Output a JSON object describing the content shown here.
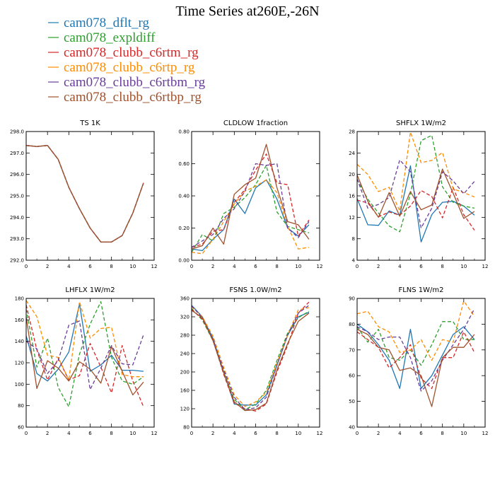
{
  "title": "Time Series at260E,-26N",
  "legend": [
    {
      "name": "cam078_dflt_rg",
      "color": "#1f77b4"
    },
    {
      "name": "cam078_expldiff",
      "color": "#2ca02c"
    },
    {
      "name": "cam078_clubb_c6rtm_rg",
      "color": "#d62728"
    },
    {
      "name": "cam078_clubb_c6rtp_rg",
      "color": "#ff8c00"
    },
    {
      "name": "cam078_clubb_c6rtbm_rg",
      "color": "#6a3d9a"
    },
    {
      "name": "cam078_clubb_c6rtbp_rg",
      "color": "#a0522d"
    }
  ],
  "chart_data": [
    {
      "type": "line",
      "title": "TS 1K",
      "x": [
        0,
        1,
        2,
        3,
        4,
        5,
        6,
        7,
        8,
        9,
        10,
        11
      ],
      "xlim": [
        0,
        12
      ],
      "xticks": [
        0,
        2,
        4,
        6,
        8,
        10,
        12
      ],
      "ylim": [
        292.0,
        298.0
      ],
      "yticks": [
        "292.0",
        "293.0",
        "294.0",
        "295.0",
        "296.0",
        "297.0",
        "298.0"
      ],
      "series": [
        {
          "name": "cam078_dflt_rg",
          "dash": "solid",
          "values": [
            297.35,
            297.3,
            297.35,
            296.7,
            295.4,
            294.4,
            293.5,
            292.85,
            292.85,
            293.15,
            294.2,
            295.6
          ]
        },
        {
          "name": "cam078_expldiff",
          "dash": "dashed",
          "values": [
            297.35,
            297.3,
            297.35,
            296.7,
            295.4,
            294.4,
            293.5,
            292.85,
            292.85,
            293.15,
            294.2,
            295.6
          ]
        },
        {
          "name": "cam078_clubb_c6rtm_rg",
          "dash": "dashed",
          "values": [
            297.35,
            297.3,
            297.35,
            296.7,
            295.4,
            294.4,
            293.5,
            292.85,
            292.85,
            293.15,
            294.2,
            295.6
          ]
        },
        {
          "name": "cam078_clubb_c6rtp_rg",
          "dash": "dashed",
          "values": [
            297.35,
            297.3,
            297.35,
            296.7,
            295.4,
            294.4,
            293.5,
            292.85,
            292.85,
            293.15,
            294.2,
            295.6
          ]
        },
        {
          "name": "cam078_clubb_c6rtbm_rg",
          "dash": "dashed",
          "values": [
            297.35,
            297.3,
            297.35,
            296.7,
            295.4,
            294.4,
            293.5,
            292.85,
            292.85,
            293.15,
            294.2,
            295.6
          ]
        },
        {
          "name": "cam078_clubb_c6rtbp_rg",
          "dash": "solid",
          "values": [
            297.35,
            297.3,
            297.35,
            296.7,
            295.4,
            294.4,
            293.5,
            292.85,
            292.85,
            293.15,
            294.2,
            295.6
          ]
        }
      ]
    },
    {
      "type": "line",
      "title": "CLDLOW 1fraction",
      "x": [
        0,
        1,
        2,
        3,
        4,
        5,
        6,
        7,
        8,
        9,
        10,
        11
      ],
      "xlim": [
        0,
        12
      ],
      "xticks": [
        0,
        2,
        4,
        6,
        8,
        10,
        12
      ],
      "ylim": [
        0.0,
        0.8
      ],
      "yticks": [
        "0.00",
        "0.20",
        "0.40",
        "0.60",
        "0.80"
      ],
      "series": [
        {
          "name": "cam078_dflt_rg",
          "dash": "solid",
          "values": [
            0.07,
            0.06,
            0.13,
            0.19,
            0.38,
            0.29,
            0.45,
            0.5,
            0.38,
            0.2,
            0.15,
            0.22
          ]
        },
        {
          "name": "cam078_expldiff",
          "dash": "dashed",
          "values": [
            0.05,
            0.16,
            0.12,
            0.29,
            0.33,
            0.39,
            0.47,
            0.59,
            0.3,
            0.21,
            0.19,
            0.17
          ]
        },
        {
          "name": "cam078_clubb_c6rtm_rg",
          "dash": "dashed",
          "values": [
            0.08,
            0.1,
            0.18,
            0.19,
            0.36,
            0.44,
            0.56,
            0.66,
            0.48,
            0.47,
            0.15,
            0.25
          ]
        },
        {
          "name": "cam078_clubb_c6rtp_rg",
          "dash": "dashed",
          "values": [
            0.05,
            0.04,
            0.13,
            0.24,
            0.35,
            0.43,
            0.46,
            0.5,
            0.42,
            0.21,
            0.07,
            0.08
          ]
        },
        {
          "name": "cam078_clubb_c6rtbm_rg",
          "dash": "dashed",
          "values": [
            0.08,
            0.12,
            0.16,
            0.26,
            0.32,
            0.43,
            0.6,
            0.59,
            0.6,
            0.2,
            0.14,
            0.24
          ]
        },
        {
          "name": "cam078_clubb_c6rtbp_rg",
          "dash": "solid",
          "values": [
            0.07,
            0.09,
            0.2,
            0.1,
            0.41,
            0.47,
            0.51,
            0.72,
            0.45,
            0.24,
            0.22,
            0.13
          ]
        }
      ]
    },
    {
      "type": "line",
      "title": "SHFLX 1W/m2",
      "x": [
        0,
        1,
        2,
        3,
        4,
        5,
        6,
        7,
        8,
        9,
        10,
        11
      ],
      "xlim": [
        0,
        12
      ],
      "xticks": [
        0,
        2,
        4,
        6,
        8,
        10,
        12
      ],
      "ylim": [
        4,
        28
      ],
      "yticks": [
        "4",
        "8",
        "12",
        "16",
        "20",
        "24",
        "28"
      ],
      "series": [
        {
          "name": "cam078_dflt_rg",
          "dash": "solid",
          "values": [
            15.5,
            10.6,
            10.5,
            13.2,
            12.4,
            21.6,
            7.4,
            12.5,
            14.8,
            15.0,
            14.1,
            12.4
          ]
        },
        {
          "name": "cam078_expldiff",
          "dash": "dashed",
          "values": [
            19.1,
            15.4,
            12.8,
            10.4,
            9.3,
            16.4,
            26.3,
            27.3,
            17.7,
            14.8,
            14.1,
            13.7
          ]
        },
        {
          "name": "cam078_clubb_c6rtm_rg",
          "dash": "dashed",
          "values": [
            15.2,
            14.7,
            12.1,
            13.0,
            12.4,
            14.1,
            17.0,
            15.9,
            11.9,
            17.6,
            12.5,
            9.6
          ]
        },
        {
          "name": "cam078_clubb_c6rtp_rg",
          "dash": "dashed",
          "values": [
            21.9,
            20.0,
            16.8,
            17.6,
            13.2,
            27.9,
            22.2,
            22.6,
            24.1,
            17.3,
            16.6,
            15.8
          ]
        },
        {
          "name": "cam078_clubb_c6rtbm_rg",
          "dash": "dashed",
          "values": [
            19.2,
            13.7,
            14.4,
            15.7,
            22.7,
            20.5,
            10.0,
            13.7,
            20.5,
            18.8,
            16.4,
            18.7
          ]
        },
        {
          "name": "cam078_clubb_c6rtbp_rg",
          "dash": "solid",
          "values": [
            19.9,
            15.0,
            12.0,
            16.6,
            12.2,
            16.8,
            13.4,
            14.3,
            21.0,
            16.5,
            11.8,
            13.1
          ]
        }
      ]
    },
    {
      "type": "line",
      "title": "LHFLX 1W/m2",
      "x": [
        0,
        1,
        2,
        3,
        4,
        5,
        6,
        7,
        8,
        9,
        10,
        11
      ],
      "xlim": [
        0,
        12
      ],
      "xticks": [
        0,
        2,
        4,
        6,
        8,
        10,
        12
      ],
      "ylim": [
        60,
        180
      ],
      "yticks": [
        "60",
        "80",
        "100",
        "120",
        "140",
        "160",
        "180"
      ],
      "series": [
        {
          "name": "cam078_dflt_rg",
          "dash": "solid",
          "values": [
            145,
            110,
            103,
            114,
            130,
            175,
            112,
            118,
            127,
            113,
            113,
            112
          ]
        },
        {
          "name": "cam078_expldiff",
          "dash": "dashed",
          "values": [
            170,
            116,
            143,
            97,
            79,
            128,
            156,
            177,
            125,
            103,
            100,
            107
          ]
        },
        {
          "name": "cam078_clubb_c6rtm_rg",
          "dash": "dashed",
          "values": [
            174,
            132,
            104,
            124,
            104,
            108,
            138,
            116,
            92,
            136,
            103,
            79
          ]
        },
        {
          "name": "cam078_clubb_c6rtp_rg",
          "dash": "dashed",
          "values": [
            178,
            163,
            127,
            125,
            104,
            177,
            143,
            152,
            153,
            109,
            107,
            107
          ]
        },
        {
          "name": "cam078_clubb_c6rtbm_rg",
          "dash": "dashed",
          "values": [
            140,
            133,
            110,
            122,
            155,
            159,
            95,
            115,
            136,
            119,
            118,
            146
          ]
        },
        {
          "name": "cam078_clubb_c6rtbp_rg",
          "dash": "solid",
          "values": [
            163,
            96,
            122,
            115,
            103,
            121,
            114,
            101,
            135,
            112,
            90,
            102
          ]
        }
      ]
    },
    {
      "type": "line",
      "title": "FSNS 1.0W/m2",
      "x": [
        0,
        1,
        2,
        3,
        4,
        5,
        6,
        7,
        8,
        9,
        10,
        11
      ],
      "xlim": [
        0,
        12
      ],
      "xticks": [
        0,
        2,
        4,
        6,
        8,
        10,
        12
      ],
      "ylim": [
        80,
        360
      ],
      "yticks": [
        "80",
        "120",
        "160",
        "200",
        "240",
        "280",
        "320",
        "360"
      ],
      "series": [
        {
          "name": "cam078_dflt_rg",
          "dash": "solid",
          "values": [
            345,
            320,
            273,
            200,
            130,
            128,
            128,
            150,
            215,
            280,
            320,
            330
          ]
        },
        {
          "name": "cam078_expldiff",
          "dash": "dashed",
          "values": [
            338,
            313,
            268,
            200,
            140,
            118,
            130,
            160,
            225,
            285,
            318,
            332
          ]
        },
        {
          "name": "cam078_clubb_c6rtm_rg",
          "dash": "dashed",
          "values": [
            336,
            315,
            270,
            195,
            132,
            120,
            115,
            130,
            200,
            258,
            328,
            352
          ]
        },
        {
          "name": "cam078_clubb_c6rtp_rg",
          "dash": "dashed",
          "values": [
            342,
            320,
            278,
            210,
            150,
            125,
            135,
            155,
            220,
            280,
            335,
            340
          ]
        },
        {
          "name": "cam078_clubb_c6rtbm_rg",
          "dash": "dashed",
          "values": [
            344,
            318,
            270,
            205,
            145,
            118,
            122,
            145,
            215,
            280,
            328,
            345
          ]
        },
        {
          "name": "cam078_clubb_c6rtbp_rg",
          "dash": "solid",
          "values": [
            334,
            318,
            268,
            198,
            135,
            116,
            118,
            132,
            205,
            262,
            310,
            328
          ]
        }
      ]
    },
    {
      "type": "line",
      "title": "FLNS 1W/m2",
      "x": [
        0,
        1,
        2,
        3,
        4,
        5,
        6,
        7,
        8,
        9,
        10,
        11
      ],
      "xlim": [
        0,
        12
      ],
      "xticks": [
        0,
        2,
        4,
        6,
        8,
        10,
        12
      ],
      "ylim": [
        40,
        90
      ],
      "yticks": [
        "40",
        "50",
        "60",
        "70",
        "80",
        "90"
      ],
      "series": [
        {
          "name": "cam078_dflt_rg",
          "dash": "solid",
          "values": [
            80,
            77,
            72,
            66,
            55,
            78,
            55,
            60,
            68,
            76,
            79,
            74
          ]
        },
        {
          "name": "cam078_expldiff",
          "dash": "dashed",
          "values": [
            79,
            73,
            78,
            67,
            66,
            70,
            64,
            72,
            81,
            81,
            74,
            74
          ]
        },
        {
          "name": "cam078_clubb_c6rtm_rg",
          "dash": "dashed",
          "values": [
            77,
            74,
            71,
            63,
            67,
            72,
            59,
            55,
            67,
            67,
            77,
            69
          ]
        },
        {
          "name": "cam078_clubb_c6rtp_rg",
          "dash": "dashed",
          "values": [
            84,
            85,
            79,
            77,
            69,
            70,
            74,
            66,
            74,
            73,
            89,
            83
          ]
        },
        {
          "name": "cam078_clubb_c6rtbm_rg",
          "dash": "dashed",
          "values": [
            79,
            77,
            74,
            75,
            75,
            67,
            54,
            58,
            66,
            72,
            78,
            86
          ]
        },
        {
          "name": "cam078_clubb_c6rtbp_rg",
          "dash": "solid",
          "values": [
            78,
            76,
            71,
            70,
            62,
            63,
            60,
            48,
            67,
            71,
            71,
            76
          ]
        }
      ]
    }
  ]
}
